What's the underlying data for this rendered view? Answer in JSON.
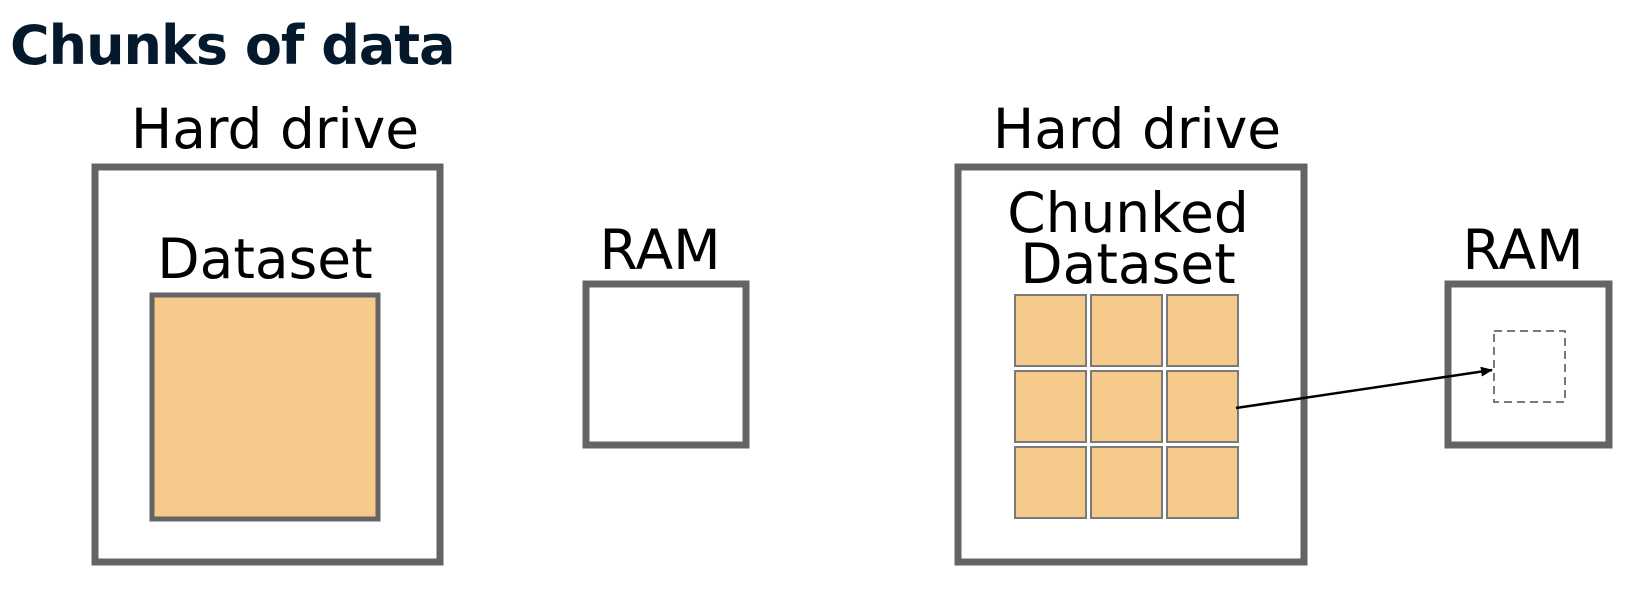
{
  "title": "Chunks of data",
  "left_panel": {
    "drive_label": "Hard drive",
    "dataset_label": "Dataset",
    "ram_label": "RAM"
  },
  "right_panel": {
    "drive_label": "Hard drive",
    "dataset_label_line1": "Chunked",
    "dataset_label_line2": "Dataset",
    "ram_label": "RAM",
    "chunk_grid": {
      "rows": 3,
      "cols": 3
    },
    "loaded_chunk": {
      "row": 2,
      "col": 3
    }
  },
  "colors": {
    "title": "#05192d",
    "box_border": "#646464",
    "dataset_fill": "#f6ca8a",
    "chunk_border": "#7a7a7a",
    "dashed_chunk_border": "#7a7a7a",
    "arrow": "#000000"
  },
  "icons": {
    "arrow": "arrow-right-icon"
  }
}
